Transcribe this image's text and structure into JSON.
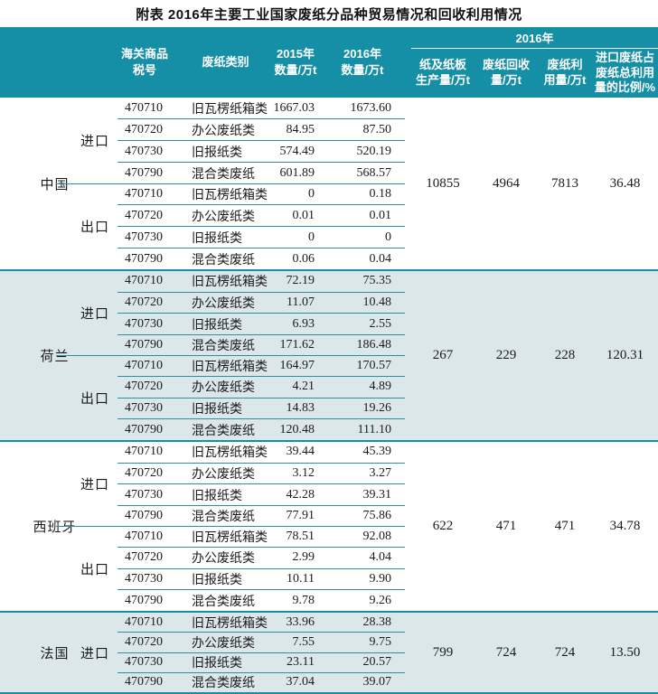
{
  "title": "附表  2016年主要工业国家废纸分品种贸易情况和回收利用情况",
  "colors": {
    "header_bg": "#148fa6",
    "shaded_section_bg": "#dce7ea",
    "row_line": "#2e8fa3",
    "header_text": "#ffffff",
    "body_text": "#1b1b1b"
  },
  "header": {
    "customs_code": "海关商品\n税号",
    "category": "废纸类别",
    "qty2015": "2015年\n数量/万t",
    "qty2016": "2016年\n数量/万t",
    "year_group": "2016年",
    "production": "纸及纸板\n生产量/万t",
    "recovery": "废纸回收\n量/万t",
    "utilization": "废纸利\n用量/万t",
    "import_ratio": "进口废纸占\n废纸总利用\n量的比例/%"
  },
  "table": {
    "countries": [
      {
        "name": "中国",
        "shaded": false,
        "production": "10855",
        "recovery": "4964",
        "utilization": "7813",
        "ratio": "36.48",
        "groups": [
          {
            "trade": "进口",
            "rows": [
              [
                "470710",
                "旧瓦楞纸箱类",
                "1667.03",
                "1673.60"
              ],
              [
                "470720",
                "办公废纸类",
                "84.95",
                "87.50"
              ],
              [
                "470730",
                "旧报纸类",
                "574.49",
                "520.19"
              ],
              [
                "470790",
                "混合类废纸",
                "601.89",
                "568.57"
              ]
            ]
          },
          {
            "trade": "出口",
            "rows": [
              [
                "470710",
                "旧瓦楞纸箱类",
                "0",
                "0.18"
              ],
              [
                "470720",
                "办公废纸类",
                "0.01",
                "0.01"
              ],
              [
                "470730",
                "旧报纸类",
                "0",
                "0"
              ],
              [
                "470790",
                "混合类废纸",
                "0.06",
                "0.04"
              ]
            ]
          }
        ]
      },
      {
        "name": "荷兰",
        "shaded": true,
        "production": "267",
        "recovery": "229",
        "utilization": "228",
        "ratio": "120.31",
        "groups": [
          {
            "trade": "进口",
            "rows": [
              [
                "470710",
                "旧瓦楞纸箱类",
                "72.19",
                "75.35"
              ],
              [
                "470720",
                "办公废纸类",
                "11.07",
                "10.48"
              ],
              [
                "470730",
                "旧报纸类",
                "6.93",
                "2.55"
              ],
              [
                "470790",
                "混合类废纸",
                "171.62",
                "186.48"
              ]
            ]
          },
          {
            "trade": "出口",
            "rows": [
              [
                "470710",
                "旧瓦楞纸箱类",
                "164.97",
                "170.57"
              ],
              [
                "470720",
                "办公废纸类",
                "4.21",
                "4.89"
              ],
              [
                "470730",
                "旧报纸类",
                "14.83",
                "19.26"
              ],
              [
                "470790",
                "混合类废纸",
                "120.48",
                "111.10"
              ]
            ]
          }
        ]
      },
      {
        "name": "西班牙",
        "shaded": false,
        "production": "622",
        "recovery": "471",
        "utilization": "471",
        "ratio": "34.78",
        "groups": [
          {
            "trade": "进口",
            "rows": [
              [
                "470710",
                "旧瓦楞纸箱类",
                "39.44",
                "45.39"
              ],
              [
                "470720",
                "办公废纸类",
                "3.12",
                "3.27"
              ],
              [
                "470730",
                "旧报纸类",
                "42.28",
                "39.31"
              ],
              [
                "470790",
                "混合类废纸",
                "77.91",
                "75.86"
              ]
            ]
          },
          {
            "trade": "出口",
            "rows": [
              [
                "470710",
                "旧瓦楞纸箱类",
                "78.51",
                "92.08"
              ],
              [
                "470720",
                "办公废纸类",
                "2.99",
                "4.04"
              ],
              [
                "470730",
                "旧报纸类",
                "10.11",
                "9.90"
              ],
              [
                "470790",
                "混合类废纸",
                "9.78",
                "9.26"
              ]
            ]
          }
        ]
      },
      {
        "name": "法国",
        "shaded": true,
        "production": "799",
        "recovery": "724",
        "utilization": "724",
        "ratio": "13.50",
        "groups": [
          {
            "trade": "进口",
            "rows": [
              [
                "470710",
                "旧瓦楞纸箱类",
                "33.96",
                "28.38"
              ],
              [
                "470720",
                "办公废纸类",
                "7.55",
                "9.75"
              ],
              [
                "470730",
                "旧报纸类",
                "23.11",
                "20.57"
              ],
              [
                "470790",
                "混合类废纸",
                "37.04",
                "39.07"
              ]
            ]
          }
        ]
      }
    ]
  }
}
